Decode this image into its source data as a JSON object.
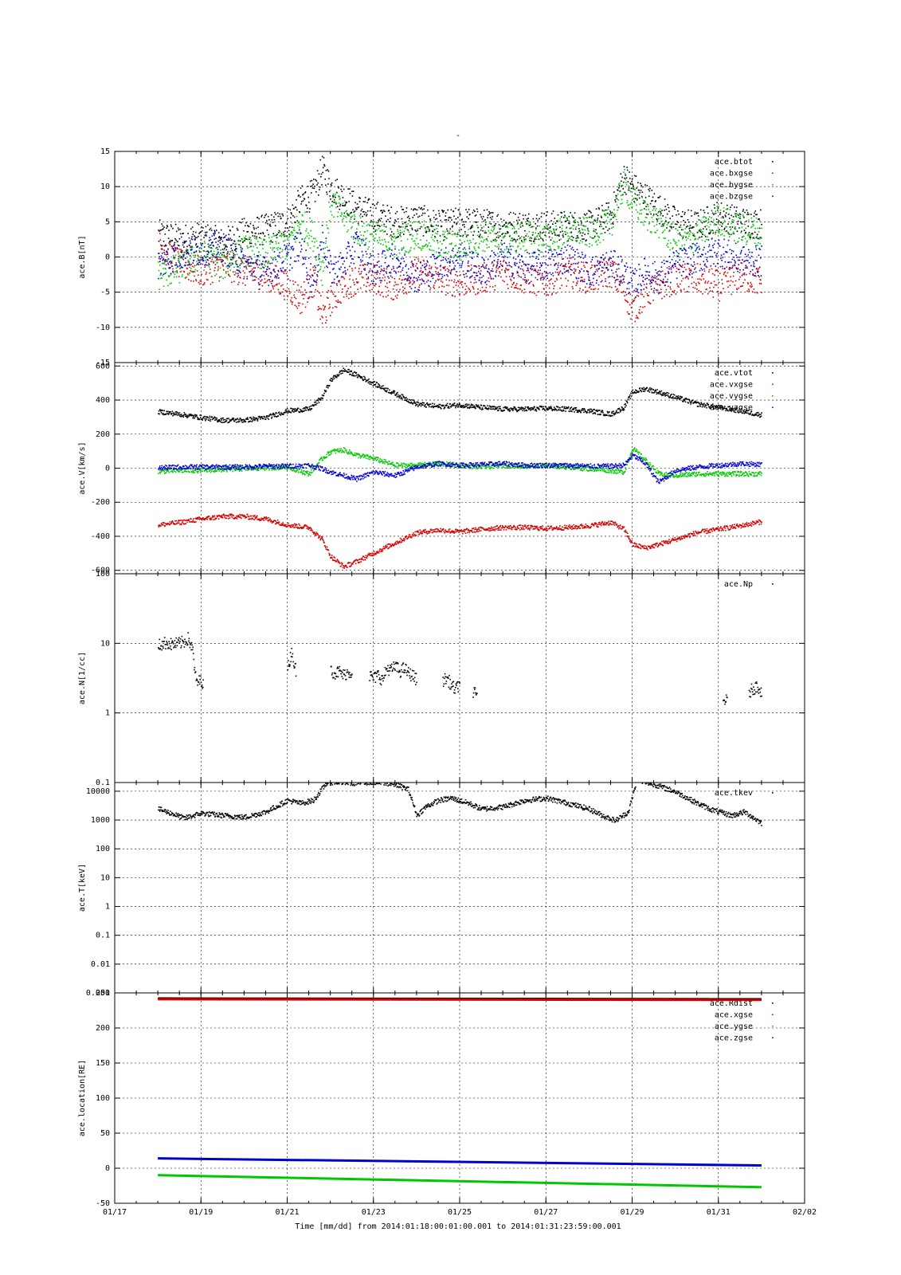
{
  "figure_title": "-",
  "x_axis": {
    "label": "Time [mm/dd]  from 2014:01:18:00:01:00.001  to  2014:01:31:23:59:00.001",
    "range_days": [
      17,
      33
    ],
    "tick_days": [
      17,
      19,
      21,
      23,
      25,
      27,
      29,
      31,
      33
    ],
    "tick_labels": [
      "01/17",
      "01/19",
      "01/21",
      "01/23",
      "01/25",
      "01/27",
      "01/29",
      "01/31",
      "02/02"
    ]
  },
  "colors": {
    "black": "#000000",
    "red": "#d40000",
    "green": "#00c800",
    "blue": "#0000d0"
  },
  "chart_data": [
    {
      "type": "scatter",
      "ylabel": "ace.B[nT]",
      "ylim": [
        -15,
        15
      ],
      "scale": "linear",
      "yticks": [
        -15,
        -10,
        -5,
        0,
        5,
        10,
        15
      ],
      "ytick_labels": [
        "-15",
        "-10",
        "-5",
        "0",
        "5",
        "10",
        "15"
      ],
      "legend_position": "top-right",
      "series": [
        {
          "name": "ace.btot",
          "color": "#000000",
          "x": [
            18.0,
            18.5,
            19.0,
            19.5,
            20.0,
            20.5,
            21.0,
            21.3,
            21.6,
            21.8,
            22.0,
            22.3,
            22.6,
            23.0,
            23.5,
            24.0,
            24.5,
            25.0,
            25.5,
            26.0,
            26.5,
            27.0,
            27.5,
            28.0,
            28.5,
            28.8,
            29.0,
            29.3,
            29.6,
            30.0,
            30.5,
            31.0,
            31.5,
            32.0
          ],
          "y": [
            3.2,
            2.5,
            3.0,
            2.0,
            3.5,
            4.0,
            5.0,
            8.0,
            9.0,
            12.5,
            10.0,
            8.5,
            7.0,
            6.0,
            5.0,
            5.5,
            4.5,
            5.0,
            4.8,
            4.5,
            4.5,
            4.5,
            4.5,
            4.5,
            6.0,
            11.5,
            10.0,
            8.5,
            7.0,
            5.0,
            4.5,
            6.0,
            5.0,
            4.8
          ]
        },
        {
          "name": "ace.bxgse",
          "color": "#d40000",
          "x": [
            18.0,
            18.5,
            19.0,
            19.5,
            20.0,
            20.5,
            21.0,
            21.3,
            21.6,
            21.8,
            22.0,
            22.3,
            22.6,
            23.0,
            23.5,
            24.0,
            24.5,
            25.0,
            25.5,
            26.0,
            26.5,
            27.0,
            27.5,
            28.0,
            28.5,
            28.8,
            29.0,
            29.3,
            29.6,
            30.0,
            30.5,
            31.0,
            31.5,
            32.0
          ],
          "y": [
            2.0,
            -1.0,
            -2.0,
            -1.0,
            -2.0,
            -2.5,
            -4.0,
            -6.0,
            -3.0,
            -8.5,
            -6.0,
            -4.0,
            -3.0,
            -3.0,
            -4.0,
            -2.0,
            -3.0,
            -3.5,
            -3.0,
            -2.0,
            -3.0,
            -3.5,
            -2.0,
            -3.0,
            -2.0,
            -4.5,
            -7.5,
            -5.0,
            -4.0,
            -3.0,
            -3.0,
            -4.0,
            -2.5,
            -3.5
          ]
        },
        {
          "name": "ace.bygse",
          "color": "#00c800",
          "x": [
            18.0,
            18.5,
            19.0,
            19.5,
            20.0,
            20.5,
            21.0,
            21.3,
            21.6,
            21.8,
            22.0,
            22.3,
            22.6,
            23.0,
            23.5,
            24.0,
            24.5,
            25.0,
            25.5,
            26.0,
            26.5,
            27.0,
            27.5,
            28.0,
            28.5,
            28.8,
            29.0,
            29.3,
            29.6,
            30.0,
            30.5,
            31.0,
            31.5,
            32.0
          ],
          "y": [
            -2.5,
            -1.5,
            0.5,
            -1.0,
            1.0,
            0.5,
            2.0,
            5.0,
            3.0,
            -2.0,
            8.0,
            6.0,
            4.0,
            3.0,
            2.0,
            3.5,
            2.0,
            1.5,
            3.0,
            2.5,
            3.0,
            2.5,
            4.0,
            3.5,
            5.0,
            10.5,
            8.0,
            6.0,
            5.0,
            2.0,
            3.0,
            5.5,
            4.0,
            3.5
          ]
        },
        {
          "name": "ace.bzgse",
          "color": "#0000d0",
          "x": [
            18.0,
            18.5,
            19.0,
            19.5,
            20.0,
            20.5,
            21.0,
            21.3,
            21.6,
            21.8,
            22.0,
            22.3,
            22.6,
            23.0,
            23.5,
            24.0,
            24.5,
            25.0,
            25.5,
            26.0,
            26.5,
            27.0,
            27.5,
            28.0,
            28.5,
            28.8,
            29.0,
            29.3,
            29.6,
            30.0,
            30.5,
            31.0,
            31.5,
            32.0
          ],
          "y": [
            -1.0,
            0.5,
            1.0,
            1.5,
            -1.0,
            -2.0,
            0.0,
            2.0,
            -4.0,
            3.0,
            -2.0,
            -1.0,
            2.0,
            -2.0,
            0.0,
            -3.0,
            -1.0,
            0.0,
            -2.0,
            0.0,
            -1.5,
            -1.0,
            0.0,
            -2.0,
            -1.0,
            -2.0,
            -4.0,
            -2.0,
            -3.0,
            -1.0,
            0.0,
            1.0,
            -0.5,
            -0.5
          ]
        }
      ]
    },
    {
      "type": "scatter",
      "ylabel": "ace.V[km/s]",
      "ylim": [
        -620,
        620
      ],
      "scale": "linear",
      "yticks": [
        -600,
        -400,
        -200,
        0,
        200,
        400,
        600
      ],
      "ytick_labels": [
        "-600",
        "-400",
        "-200",
        "0",
        "200",
        "400",
        "600"
      ],
      "legend_position": "top-right",
      "series": [
        {
          "name": "ace.vtot",
          "color": "#000000",
          "x": [
            18.0,
            18.5,
            19.0,
            19.5,
            20.0,
            20.5,
            21.0,
            21.5,
            21.8,
            22.0,
            22.3,
            22.6,
            23.0,
            23.5,
            24.0,
            24.5,
            25.0,
            25.5,
            26.0,
            26.5,
            27.0,
            27.5,
            28.0,
            28.5,
            28.8,
            29.0,
            29.3,
            29.6,
            30.0,
            30.5,
            31.0,
            31.5,
            32.0
          ],
          "y": [
            335,
            320,
            300,
            285,
            285,
            300,
            340,
            350,
            420,
            520,
            580,
            550,
            500,
            440,
            380,
            365,
            375,
            360,
            350,
            350,
            355,
            350,
            340,
            320,
            360,
            450,
            470,
            450,
            420,
            380,
            360,
            340,
            315
          ]
        },
        {
          "name": "ace.vxgse",
          "color": "#d40000",
          "x": [
            18.0,
            18.5,
            19.0,
            19.5,
            20.0,
            20.5,
            21.0,
            21.5,
            21.8,
            22.0,
            22.3,
            22.6,
            23.0,
            23.5,
            24.0,
            24.5,
            25.0,
            25.5,
            26.0,
            26.5,
            27.0,
            27.5,
            28.0,
            28.5,
            28.8,
            29.0,
            29.3,
            29.6,
            30.0,
            30.5,
            31.0,
            31.5,
            32.0
          ],
          "y": [
            -330,
            -315,
            -295,
            -280,
            -280,
            -295,
            -330,
            -345,
            -415,
            -515,
            -575,
            -545,
            -495,
            -435,
            -375,
            -360,
            -370,
            -355,
            -345,
            -345,
            -350,
            -345,
            -335,
            -315,
            -355,
            -445,
            -465,
            -445,
            -415,
            -375,
            -355,
            -335,
            -310
          ]
        },
        {
          "name": "ace.vygse",
          "color": "#00c800",
          "x": [
            18.0,
            18.5,
            19.0,
            19.5,
            20.0,
            20.5,
            21.0,
            21.5,
            21.8,
            22.0,
            22.3,
            22.6,
            23.0,
            23.5,
            24.0,
            24.5,
            25.0,
            25.5,
            26.0,
            26.5,
            27.0,
            27.5,
            28.0,
            28.5,
            28.8,
            29.0,
            29.3,
            29.6,
            30.0,
            30.5,
            31.0,
            31.5,
            32.0
          ],
          "y": [
            -15,
            -10,
            -10,
            -5,
            0,
            5,
            10,
            -30,
            60,
            100,
            110,
            80,
            60,
            20,
            20,
            30,
            20,
            10,
            20,
            15,
            20,
            10,
            0,
            -10,
            -20,
            120,
            50,
            -30,
            -40,
            -30,
            -30,
            -30,
            -30
          ]
        },
        {
          "name": "ace.vzgse",
          "color": "#0000d0",
          "x": [
            18.0,
            18.5,
            19.0,
            19.5,
            20.0,
            20.5,
            21.0,
            21.5,
            21.8,
            22.0,
            22.3,
            22.6,
            23.0,
            23.5,
            24.0,
            24.5,
            25.0,
            25.5,
            26.0,
            26.5,
            27.0,
            27.5,
            28.0,
            28.5,
            28.8,
            29.0,
            29.3,
            29.6,
            30.0,
            30.5,
            31.0,
            31.5,
            32.0
          ],
          "y": [
            5,
            10,
            10,
            10,
            10,
            15,
            15,
            20,
            0,
            -20,
            -40,
            -60,
            -20,
            -40,
            10,
            30,
            20,
            25,
            30,
            20,
            20,
            20,
            15,
            15,
            20,
            80,
            30,
            -80,
            -10,
            10,
            20,
            30,
            25
          ]
        }
      ]
    },
    {
      "type": "scatter",
      "ylabel": "ace.N[1/cc]",
      "ylim": [
        0.1,
        100
      ],
      "scale": "log",
      "yticks": [
        0.1,
        1,
        10,
        100
      ],
      "ytick_labels": [
        "0.1",
        "1",
        "10",
        "100"
      ],
      "legend_position": "top-right",
      "series": [
        {
          "name": "ace.Np",
          "color": "#000000",
          "x": [
            18.0,
            18.1,
            18.2,
            18.3,
            18.4,
            18.5,
            18.6,
            18.7,
            18.75,
            18.8,
            18.85,
            18.9,
            19.0,
            19.05,
            21.0,
            21.05,
            21.1,
            21.15,
            21.2,
            22.0,
            22.1,
            22.2,
            22.3,
            22.4,
            22.5,
            22.9,
            23.0,
            23.1,
            23.2,
            23.3,
            23.4,
            23.5,
            23.6,
            23.7,
            23.8,
            23.9,
            24.0,
            24.6,
            24.7,
            24.8,
            24.9,
            25.0,
            25.3,
            25.4,
            31.1,
            31.15,
            31.2,
            31.7,
            31.8,
            31.9,
            32.0
          ],
          "y": [
            9.5,
            10.0,
            10.5,
            9.8,
            10.0,
            10.2,
            10.8,
            12.0,
            9.5,
            8.0,
            3.5,
            2.8,
            3.0,
            2.5,
            4.5,
            6.0,
            8.0,
            5.0,
            4.0,
            4.2,
            3.8,
            4.0,
            3.5,
            4.0,
            3.8,
            3.5,
            3.2,
            3.6,
            3.0,
            4.5,
            4.2,
            4.8,
            4.0,
            4.5,
            3.8,
            3.5,
            3.0,
            3.0,
            3.2,
            2.5,
            2.2,
            2.8,
            2.0,
            1.8,
            1.5,
            1.6,
            1.4,
            2.0,
            2.3,
            2.5,
            2.0
          ]
        }
      ]
    },
    {
      "type": "scatter",
      "ylabel": "ace.T[keV]",
      "ylim": [
        0.001,
        20000
      ],
      "scale": "log",
      "yticks": [
        0.001,
        0.01,
        0.1,
        1,
        10,
        100,
        1000,
        10000
      ],
      "ytick_labels": [
        "0.001",
        "0.01",
        "0.1",
        "1",
        "10",
        "100",
        "1000",
        "10000"
      ],
      "legend_position": "top-right",
      "series": [
        {
          "name": "ace.tkev",
          "color": "#000000",
          "x": [
            18.0,
            18.3,
            18.6,
            19.0,
            19.5,
            20.0,
            20.5,
            21.0,
            21.3,
            21.6,
            21.9,
            22.1,
            22.5,
            23.0,
            23.5,
            23.8,
            24.0,
            24.2,
            24.5,
            24.8,
            25.2,
            25.5,
            26.0,
            26.5,
            27.0,
            27.5,
            28.0,
            28.3,
            28.6,
            28.9,
            29.1,
            29.5,
            30.0,
            30.5,
            30.8,
            31.0,
            31.3,
            31.6,
            32.0
          ],
          "y": [
            2500,
            1800,
            1200,
            1800,
            1500,
            1300,
            2000,
            5000,
            4000,
            5000,
            20000,
            22000,
            20000,
            22000,
            18000,
            12000,
            1500,
            3000,
            5000,
            6000,
            4000,
            2500,
            3000,
            5000,
            6000,
            4000,
            2500,
            1500,
            1000,
            2000,
            25000,
            18000,
            10000,
            4000,
            2500,
            2000,
            1500,
            2000,
            800
          ]
        }
      ]
    },
    {
      "type": "line",
      "ylabel": "ace.location[RE]",
      "ylim": [
        -50,
        250
      ],
      "scale": "linear",
      "yticks": [
        -50,
        0,
        50,
        100,
        150,
        200,
        250
      ],
      "ytick_labels": [
        "-50",
        "0",
        "50",
        "100",
        "150",
        "200",
        "250"
      ],
      "legend_position": "top-right",
      "series": [
        {
          "name": "ace.Rdist",
          "color": "#000000",
          "x": [
            18.0,
            32.0
          ],
          "y": [
            242,
            241
          ]
        },
        {
          "name": "ace.xgse",
          "color": "#d40000",
          "x": [
            18.0,
            32.0
          ],
          "y": [
            241,
            240
          ]
        },
        {
          "name": "ace.ygse",
          "color": "#00c800",
          "x": [
            18.0,
            32.0
          ],
          "y": [
            -10,
            -27
          ]
        },
        {
          "name": "ace.zgse",
          "color": "#0000d0",
          "x": [
            18.0,
            32.0
          ],
          "y": [
            14,
            4
          ]
        }
      ]
    }
  ]
}
